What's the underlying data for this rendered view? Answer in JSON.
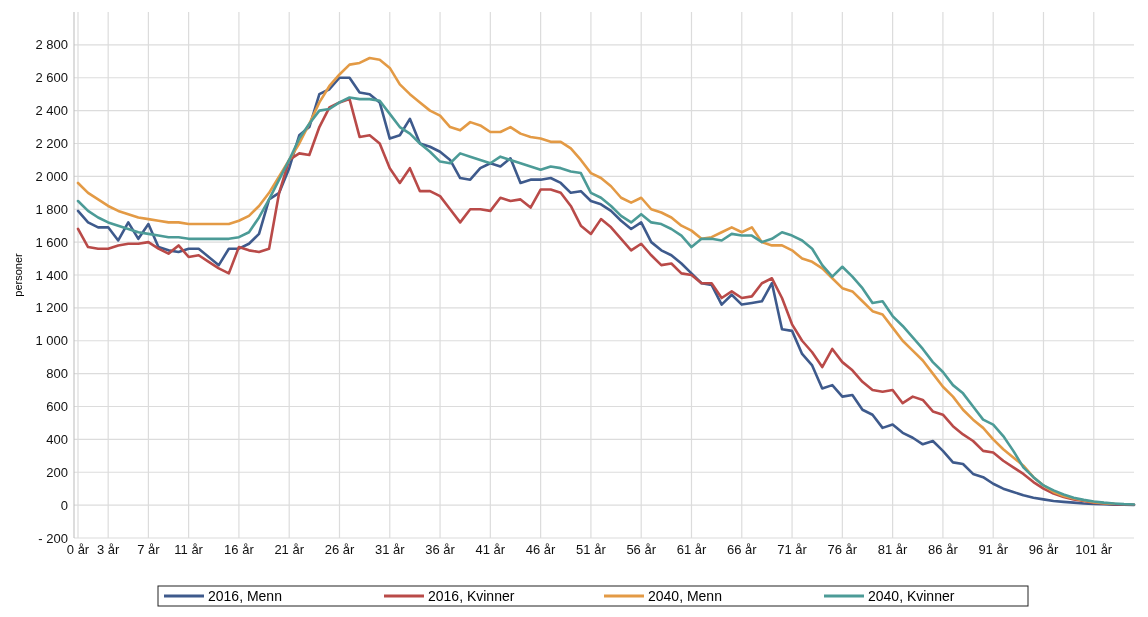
{
  "chart_data": {
    "type": "line",
    "ylabel": "personer",
    "categories": [
      "0 år",
      null,
      null,
      "3 år",
      null,
      null,
      null,
      "7 år",
      null,
      null,
      null,
      "11 år",
      null,
      null,
      null,
      null,
      "16 år",
      null,
      null,
      null,
      null,
      "21 år",
      null,
      null,
      null,
      null,
      "26 år",
      null,
      null,
      null,
      null,
      "31 år",
      null,
      null,
      null,
      null,
      "36 år",
      null,
      null,
      null,
      null,
      "41 år",
      null,
      null,
      null,
      null,
      "46 år",
      null,
      null,
      null,
      null,
      "51 år",
      null,
      null,
      null,
      null,
      "56 år",
      null,
      null,
      null,
      null,
      "61 år",
      null,
      null,
      null,
      null,
      "66 år",
      null,
      null,
      null,
      null,
      "71 år",
      null,
      null,
      null,
      null,
      "76 år",
      null,
      null,
      null,
      null,
      "81 år",
      null,
      null,
      null,
      null,
      "86 år",
      null,
      null,
      null,
      null,
      "91 år",
      null,
      null,
      null,
      null,
      "96 år",
      null,
      null,
      null,
      null,
      "101 år",
      null,
      null,
      null,
      null
    ],
    "ylim": [
      -200,
      3000
    ],
    "yticks": [
      {
        "value": -200,
        "label": "- 200"
      },
      0,
      200,
      400,
      600,
      800,
      {
        "value": 1000,
        "label": "1 000"
      },
      {
        "value": 1200,
        "label": "1 200"
      },
      {
        "value": 1400,
        "label": "1 400"
      },
      {
        "value": 1600,
        "label": "1 600"
      },
      {
        "value": 1800,
        "label": "1 800"
      },
      {
        "value": 2000,
        "label": "2 000"
      },
      {
        "value": 2200,
        "label": "2 200"
      },
      {
        "value": 2400,
        "label": "2 400"
      },
      {
        "value": 2600,
        "label": "2 600"
      },
      {
        "value": 2800,
        "label": "2 800"
      }
    ],
    "grid": true,
    "legend": "bottom",
    "line_style": "solid",
    "series": [
      {
        "name": "2016, Menn",
        "color": "#3e5a8c",
        "values": [
          1790,
          1720,
          1690,
          1690,
          1610,
          1720,
          1620,
          1710,
          1570,
          1550,
          1540,
          1560,
          1560,
          1510,
          1460,
          1560,
          1560,
          1590,
          1650,
          1860,
          1900,
          2050,
          2250,
          2300,
          2500,
          2530,
          2600,
          2600,
          2510,
          2500,
          2450,
          2230,
          2250,
          2350,
          2200,
          2180,
          2150,
          2100,
          1990,
          1980,
          2050,
          2080,
          2060,
          2110,
          1960,
          1980,
          1980,
          1990,
          1960,
          1900,
          1910,
          1850,
          1830,
          1790,
          1730,
          1680,
          1720,
          1600,
          1550,
          1520,
          1470,
          1410,
          1350,
          1340,
          1220,
          1280,
          1220,
          1230,
          1240,
          1350,
          1070,
          1060,
          920,
          850,
          710,
          730,
          660,
          670,
          580,
          550,
          470,
          490,
          440,
          410,
          370,
          390,
          330,
          260,
          250,
          190,
          170,
          130,
          100,
          80,
          60,
          45,
          35,
          25,
          20,
          15,
          10,
          7,
          5,
          3,
          2,
          1
        ]
      },
      {
        "name": "2016, Kvinner",
        "color": "#b94a48",
        "values": [
          1680,
          1570,
          1560,
          1560,
          1580,
          1590,
          1590,
          1600,
          1560,
          1530,
          1580,
          1510,
          1520,
          1480,
          1440,
          1410,
          1570,
          1550,
          1540,
          1560,
          1900,
          2100,
          2140,
          2130,
          2300,
          2420,
          2450,
          2470,
          2240,
          2250,
          2200,
          2050,
          1960,
          2050,
          1910,
          1910,
          1880,
          1800,
          1720,
          1800,
          1800,
          1790,
          1870,
          1850,
          1860,
          1810,
          1920,
          1920,
          1900,
          1820,
          1700,
          1650,
          1740,
          1690,
          1620,
          1550,
          1590,
          1520,
          1460,
          1470,
          1410,
          1400,
          1350,
          1350,
          1260,
          1300,
          1260,
          1270,
          1350,
          1380,
          1260,
          1100,
          1000,
          930,
          840,
          950,
          870,
          820,
          750,
          700,
          690,
          700,
          620,
          660,
          640,
          570,
          550,
          480,
          430,
          390,
          330,
          320,
          270,
          230,
          190,
          140,
          100,
          70,
          50,
          35,
          25,
          15,
          10,
          6,
          4,
          2
        ]
      },
      {
        "name": "2040, Menn",
        "color": "#e39a45",
        "values": [
          1960,
          1900,
          1860,
          1820,
          1790,
          1770,
          1750,
          1740,
          1730,
          1720,
          1720,
          1710,
          1710,
          1710,
          1710,
          1710,
          1730,
          1760,
          1820,
          1900,
          2000,
          2100,
          2200,
          2320,
          2450,
          2550,
          2620,
          2680,
          2690,
          2720,
          2710,
          2660,
          2560,
          2500,
          2450,
          2400,
          2370,
          2300,
          2280,
          2330,
          2310,
          2270,
          2270,
          2300,
          2260,
          2240,
          2230,
          2210,
          2210,
          2170,
          2100,
          2020,
          1990,
          1940,
          1870,
          1840,
          1870,
          1800,
          1780,
          1750,
          1700,
          1670,
          1620,
          1630,
          1660,
          1690,
          1660,
          1690,
          1600,
          1580,
          1580,
          1550,
          1500,
          1480,
          1440,
          1380,
          1320,
          1300,
          1240,
          1180,
          1160,
          1080,
          1000,
          940,
          880,
          800,
          720,
          660,
          580,
          520,
          470,
          400,
          340,
          290,
          240,
          170,
          120,
          80,
          55,
          40,
          28,
          18,
          12,
          8,
          null,
          null
        ]
      },
      {
        "name": "2040, Kvinner",
        "color": "#4c9b97",
        "values": [
          1850,
          1790,
          1750,
          1720,
          1700,
          1680,
          1660,
          1650,
          1640,
          1630,
          1630,
          1620,
          1620,
          1620,
          1620,
          1620,
          1630,
          1660,
          1750,
          1860,
          1980,
          2100,
          2230,
          2320,
          2400,
          2410,
          2450,
          2480,
          2470,
          2470,
          2460,
          2380,
          2300,
          2260,
          2200,
          2150,
          2090,
          2080,
          2140,
          2120,
          2100,
          2080,
          2120,
          2100,
          2080,
          2060,
          2040,
          2060,
          2050,
          2030,
          2020,
          1900,
          1870,
          1820,
          1760,
          1720,
          1770,
          1720,
          1710,
          1680,
          1640,
          1570,
          1620,
          1620,
          1610,
          1650,
          1640,
          1640,
          1600,
          1620,
          1660,
          1640,
          1610,
          1560,
          1460,
          1390,
          1450,
          1390,
          1320,
          1230,
          1240,
          1150,
          1090,
          1020,
          950,
          870,
          810,
          730,
          680,
          600,
          520,
          490,
          420,
          330,
          230,
          170,
          120,
          90,
          65,
          45,
          32,
          22,
          15,
          10,
          6,
          4
        ]
      }
    ]
  }
}
